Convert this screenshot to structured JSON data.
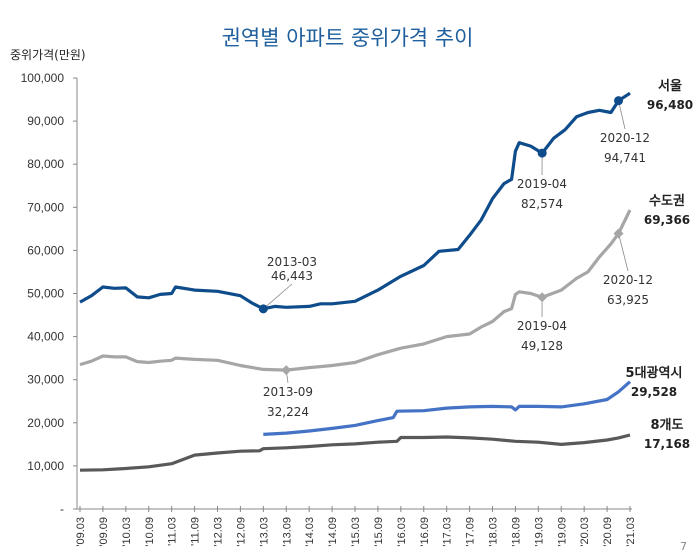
{
  "chart_data": {
    "type": "line",
    "title": "권역별 아파트 중위가격 추이",
    "ylabel": "중위가격(만원)",
    "xlabel": "",
    "ylim": [
      0,
      100000
    ],
    "y_ticks": [
      "-",
      "10,000",
      "20,000",
      "30,000",
      "40,000",
      "50,000",
      "60,000",
      "70,000",
      "80,000",
      "90,000",
      "100,000"
    ],
    "x_ticks": [
      "'09.03",
      "'09.09",
      "'10.03",
      "'10.09",
      "'11.03",
      "'11.09",
      "'12.03",
      "'12.09",
      "'13.03",
      "'13.09",
      "'14.03",
      "'14.09",
      "'15.03",
      "'15.09",
      "'16.03",
      "'16.09",
      "'17.03",
      "'17.09",
      "'18.03",
      "'18.09",
      "'19.03",
      "'19.09",
      "'20.03",
      "'20.09",
      "'21.03"
    ],
    "grid": false,
    "legend": "none (series labelled at line ends)",
    "series": [
      {
        "name": "서울",
        "end_label": "96,480",
        "color": "#0f4c8c",
        "points": [
          [
            "2009-03",
            48000
          ],
          [
            "2009-06",
            49500
          ],
          [
            "2009-09",
            51500
          ],
          [
            "2009-12",
            51200
          ],
          [
            "2010-03",
            51300
          ],
          [
            "2010-06",
            49200
          ],
          [
            "2010-09",
            49000
          ],
          [
            "2010-12",
            49800
          ],
          [
            "2011-03",
            50000
          ],
          [
            "2011-04",
            51500
          ],
          [
            "2011-09",
            50800
          ],
          [
            "2012-03",
            50500
          ],
          [
            "2012-09",
            49500
          ],
          [
            "2012-12",
            47800
          ],
          [
            "2013-03",
            46443
          ],
          [
            "2013-06",
            47000
          ],
          [
            "2013-09",
            46800
          ],
          [
            "2014-03",
            47000
          ],
          [
            "2014-06",
            47600
          ],
          [
            "2014-09",
            47600
          ],
          [
            "2015-03",
            48200
          ],
          [
            "2015-09",
            50800
          ],
          [
            "2016-03",
            54000
          ],
          [
            "2016-09",
            56500
          ],
          [
            "2017-01",
            59800
          ],
          [
            "2017-06",
            60200
          ],
          [
            "2017-09",
            63500
          ],
          [
            "2017-12",
            67000
          ],
          [
            "2018-03",
            72000
          ],
          [
            "2018-06",
            75500
          ],
          [
            "2018-08",
            76500
          ],
          [
            "2018-09",
            83000
          ],
          [
            "2018-10",
            85000
          ],
          [
            "2019-01",
            84200
          ],
          [
            "2019-04",
            82574
          ],
          [
            "2019-07",
            86000
          ],
          [
            "2019-10",
            88000
          ],
          [
            "2020-01",
            91000
          ],
          [
            "2020-04",
            92000
          ],
          [
            "2020-07",
            92500
          ],
          [
            "2020-10",
            92000
          ],
          [
            "2020-12",
            94741
          ],
          [
            "2021-03",
            96480
          ]
        ],
        "annotations": [
          {
            "date": "2013-03",
            "value": "46,443"
          },
          {
            "date": "2019-04",
            "value": "82,574"
          },
          {
            "date": "2020-12",
            "value": "94,741"
          }
        ]
      },
      {
        "name": "수도권",
        "end_label": "69,366",
        "color": "#a6a6a6",
        "points": [
          [
            "2009-03",
            33500
          ],
          [
            "2009-06",
            34300
          ],
          [
            "2009-09",
            35500
          ],
          [
            "2009-12",
            35300
          ],
          [
            "2010-03",
            35300
          ],
          [
            "2010-06",
            34200
          ],
          [
            "2010-09",
            34000
          ],
          [
            "2010-12",
            34300
          ],
          [
            "2011-03",
            34500
          ],
          [
            "2011-04",
            35000
          ],
          [
            "2011-09",
            34700
          ],
          [
            "2012-03",
            34500
          ],
          [
            "2012-09",
            33300
          ],
          [
            "2013-03",
            32400
          ],
          [
            "2013-09",
            32224
          ],
          [
            "2014-03",
            32800
          ],
          [
            "2014-09",
            33300
          ],
          [
            "2015-03",
            34000
          ],
          [
            "2015-09",
            35800
          ],
          [
            "2016-03",
            37300
          ],
          [
            "2016-09",
            38300
          ],
          [
            "2017-03",
            40000
          ],
          [
            "2017-09",
            40600
          ],
          [
            "2017-12",
            42200
          ],
          [
            "2018-03",
            43500
          ],
          [
            "2018-06",
            45800
          ],
          [
            "2018-08",
            46500
          ],
          [
            "2018-09",
            49800
          ],
          [
            "2018-10",
            50400
          ],
          [
            "2019-01",
            50000
          ],
          [
            "2019-04",
            49128
          ],
          [
            "2019-09",
            50800
          ],
          [
            "2020-01",
            53500
          ],
          [
            "2020-04",
            55000
          ],
          [
            "2020-07",
            58500
          ],
          [
            "2020-10",
            61500
          ],
          [
            "2020-12",
            63925
          ],
          [
            "2021-03",
            69366
          ]
        ],
        "annotations": [
          {
            "date": "2013-09",
            "value": "32,224"
          },
          {
            "date": "2019-04",
            "value": "49,128"
          },
          {
            "date": "2020-12",
            "value": "63,925"
          }
        ]
      },
      {
        "name": "5대광역시",
        "end_label": "29,528",
        "color": "#4472c4",
        "points": [
          [
            "2013-03",
            17300
          ],
          [
            "2013-09",
            17600
          ],
          [
            "2014-03",
            18100
          ],
          [
            "2014-09",
            18700
          ],
          [
            "2015-03",
            19400
          ],
          [
            "2015-09",
            20500
          ],
          [
            "2016-01",
            21200
          ],
          [
            "2016-02",
            22700
          ],
          [
            "2016-09",
            22800
          ],
          [
            "2017-03",
            23400
          ],
          [
            "2017-09",
            23700
          ],
          [
            "2018-03",
            23800
          ],
          [
            "2018-08",
            23700
          ],
          [
            "2018-09",
            23000
          ],
          [
            "2018-10",
            23800
          ],
          [
            "2019-03",
            23800
          ],
          [
            "2019-09",
            23700
          ],
          [
            "2020-03",
            24400
          ],
          [
            "2020-09",
            25400
          ],
          [
            "2020-12",
            27200
          ],
          [
            "2021-03",
            29528
          ]
        ],
        "annotations": []
      },
      {
        "name": "8개도",
        "end_label": "17,168",
        "color": "#595959",
        "points": [
          [
            "2009-03",
            9000
          ],
          [
            "2009-09",
            9100
          ],
          [
            "2010-03",
            9400
          ],
          [
            "2010-09",
            9800
          ],
          [
            "2011-03",
            10500
          ],
          [
            "2011-09",
            12500
          ],
          [
            "2012-03",
            13000
          ],
          [
            "2012-09",
            13400
          ],
          [
            "2013-02",
            13500
          ],
          [
            "2013-03",
            14000
          ],
          [
            "2013-09",
            14200
          ],
          [
            "2014-03",
            14500
          ],
          [
            "2014-09",
            14900
          ],
          [
            "2015-03",
            15100
          ],
          [
            "2015-09",
            15500
          ],
          [
            "2016-02",
            15700
          ],
          [
            "2016-03",
            16600
          ],
          [
            "2016-09",
            16600
          ],
          [
            "2017-03",
            16700
          ],
          [
            "2017-09",
            16500
          ],
          [
            "2018-03",
            16200
          ],
          [
            "2018-09",
            15700
          ],
          [
            "2019-03",
            15500
          ],
          [
            "2019-09",
            15000
          ],
          [
            "2020-03",
            15400
          ],
          [
            "2020-09",
            16000
          ],
          [
            "2020-12",
            16500
          ],
          [
            "2021-03",
            17168
          ]
        ],
        "annotations": []
      }
    ]
  },
  "page_number": "7"
}
